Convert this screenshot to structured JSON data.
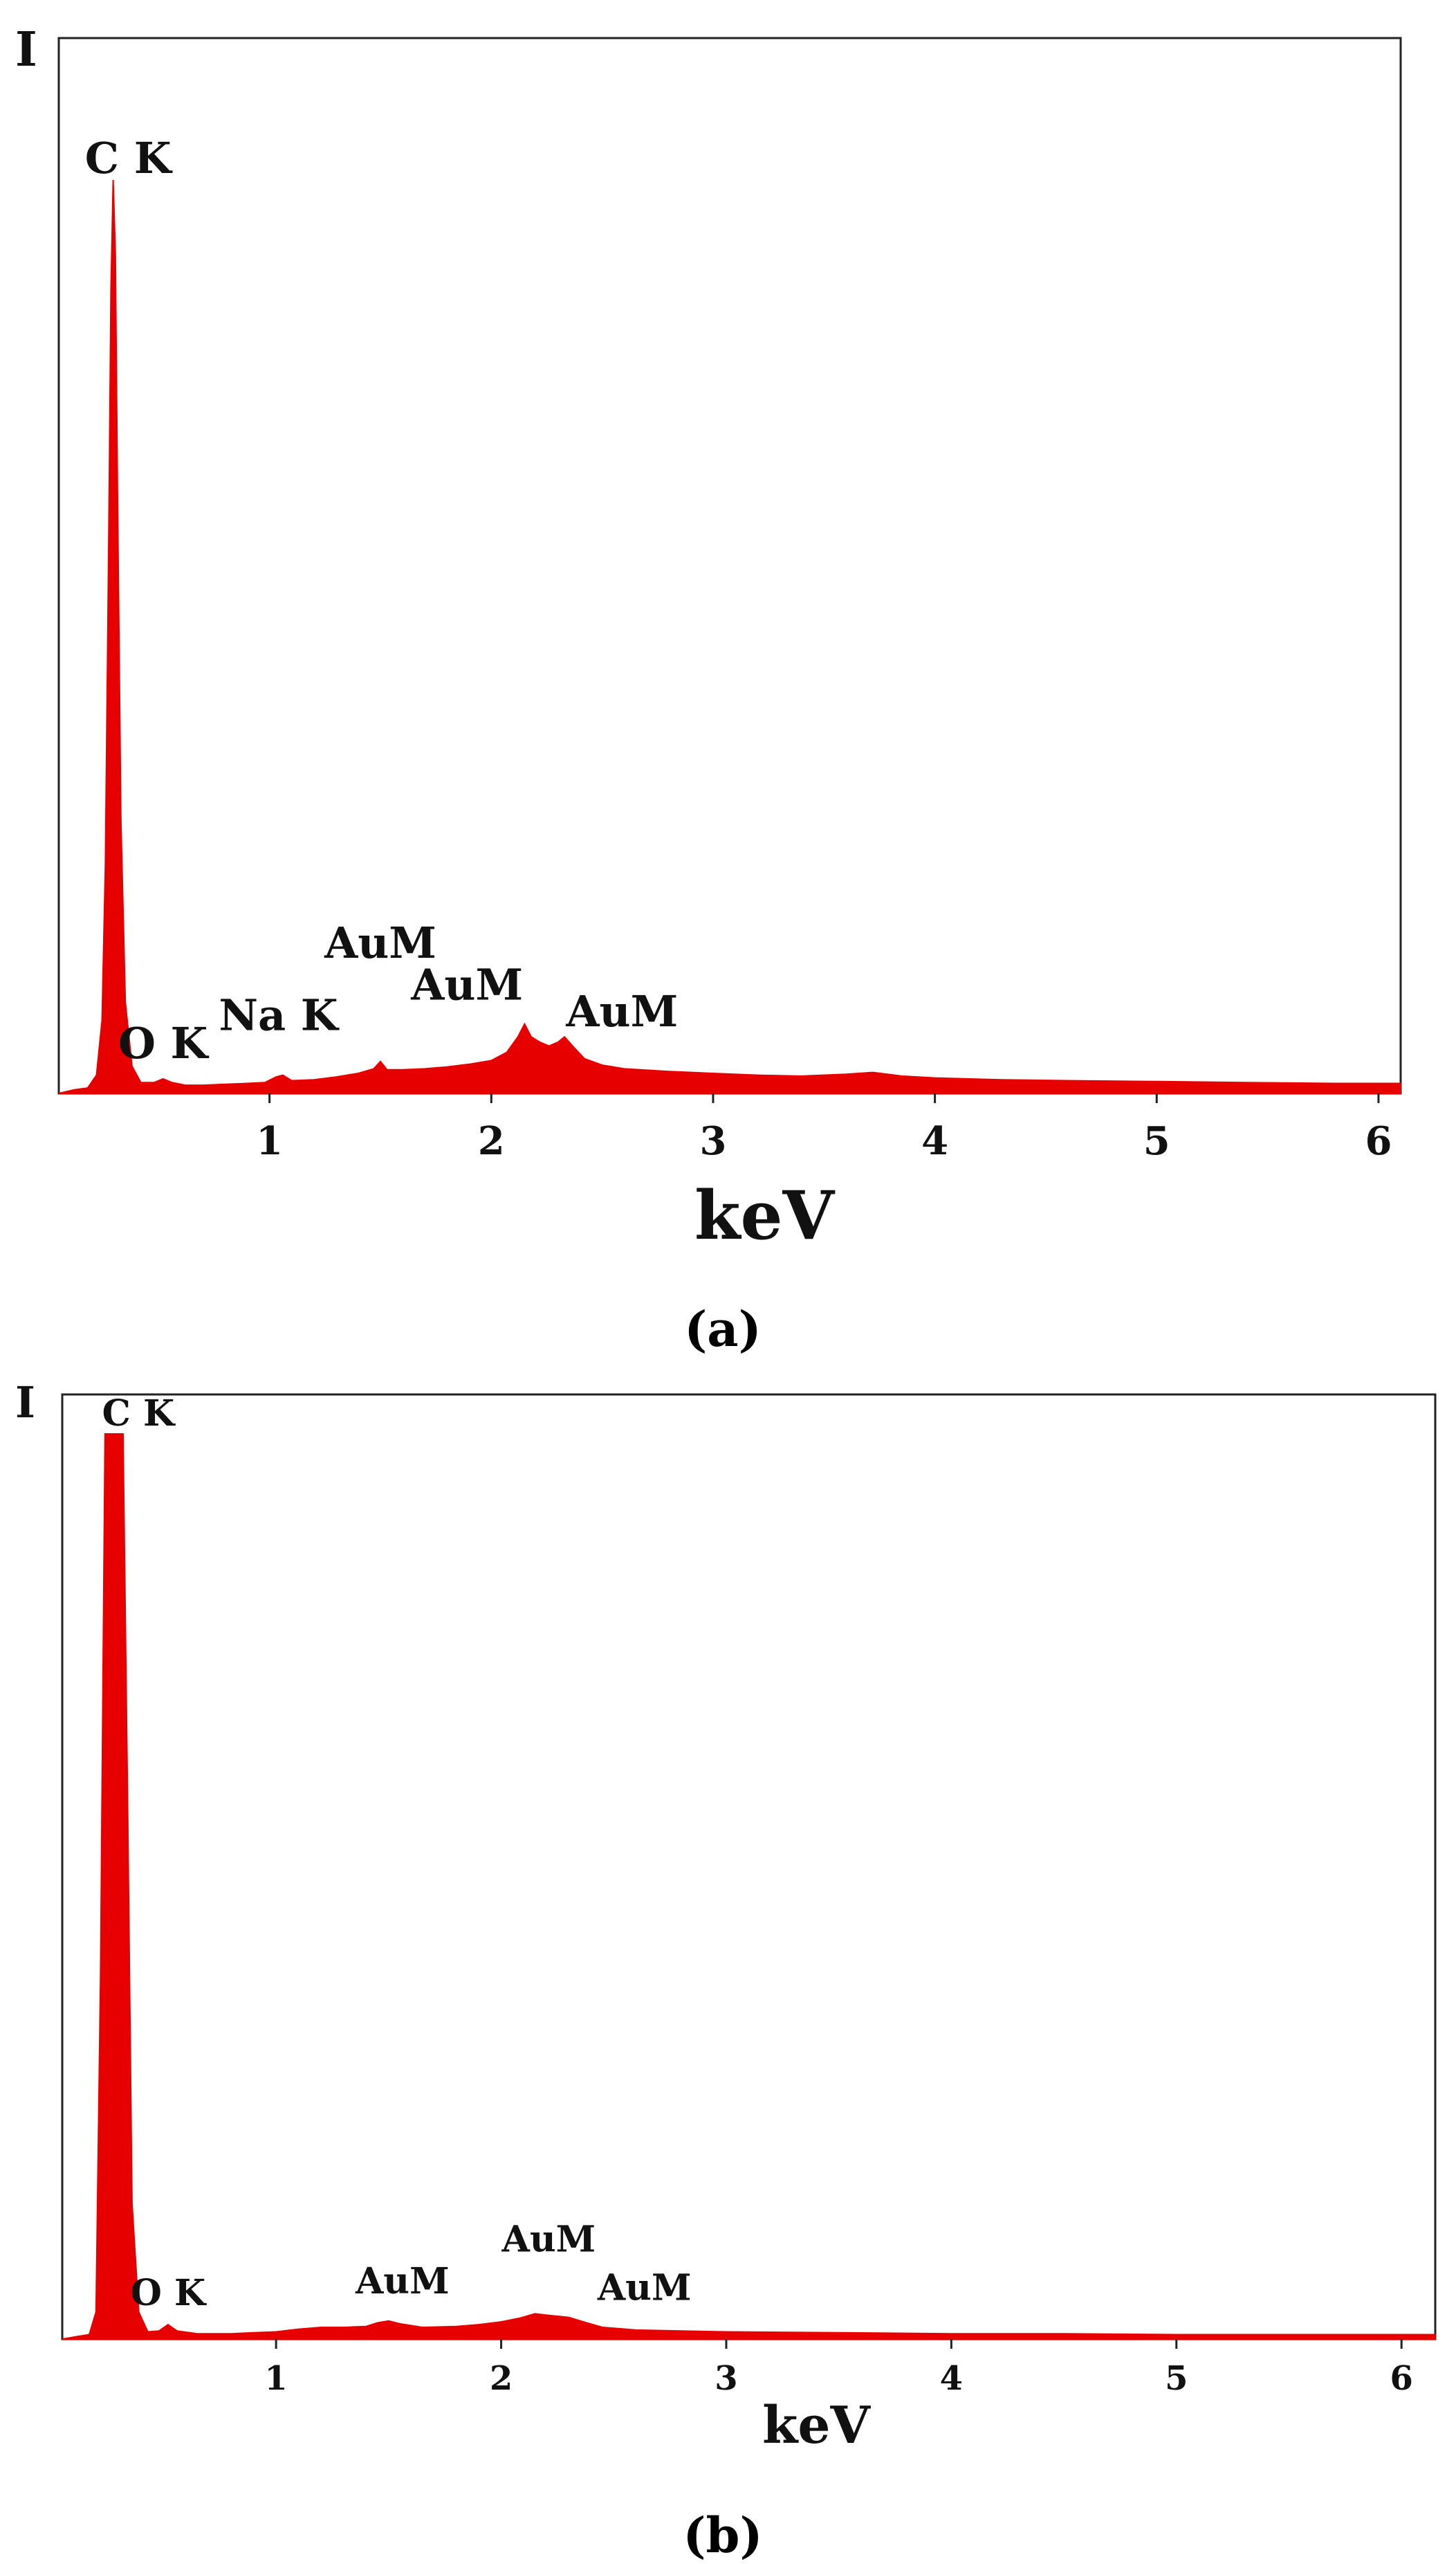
{
  "colors": {
    "spectrum": "#e60000",
    "axis": "#222222"
  },
  "chart_data": [
    {
      "type": "area",
      "panel_label": "(a)",
      "ylabel": "I",
      "xlabel": "keV",
      "xlim": [
        0.05,
        6.1
      ],
      "ylim": [
        0,
        100
      ],
      "xticks": [
        1,
        2,
        3,
        4,
        5,
        6
      ],
      "grid": false,
      "series": [
        {
          "points": [
            [
              0.05,
              0
            ],
            [
              0.12,
              0.4
            ],
            [
              0.18,
              0.6
            ],
            [
              0.22,
              2
            ],
            [
              0.245,
              8
            ],
            [
              0.26,
              25
            ],
            [
              0.275,
              60
            ],
            [
              0.285,
              88
            ],
            [
              0.295,
              100
            ],
            [
              0.305,
              92
            ],
            [
              0.315,
              65
            ],
            [
              0.33,
              30
            ],
            [
              0.35,
              10
            ],
            [
              0.38,
              3
            ],
            [
              0.42,
              1.2
            ],
            [
              0.48,
              1.2
            ],
            [
              0.52,
              1.6
            ],
            [
              0.56,
              1.2
            ],
            [
              0.62,
              0.9
            ],
            [
              0.7,
              0.9
            ],
            [
              0.8,
              1
            ],
            [
              0.9,
              1.1
            ],
            [
              0.98,
              1.2
            ],
            [
              1.03,
              1.8
            ],
            [
              1.06,
              2
            ],
            [
              1.1,
              1.4
            ],
            [
              1.2,
              1.5
            ],
            [
              1.3,
              1.8
            ],
            [
              1.4,
              2.2
            ],
            [
              1.47,
              2.7
            ],
            [
              1.5,
              3.5
            ],
            [
              1.53,
              2.6
            ],
            [
              1.6,
              2.6
            ],
            [
              1.7,
              2.7
            ],
            [
              1.8,
              2.9
            ],
            [
              1.9,
              3.2
            ],
            [
              2.0,
              3.6
            ],
            [
              2.07,
              4.5
            ],
            [
              2.12,
              6.2
            ],
            [
              2.15,
              7.6
            ],
            [
              2.18,
              6.2
            ],
            [
              2.22,
              5.6
            ],
            [
              2.26,
              5.2
            ],
            [
              2.3,
              5.6
            ],
            [
              2.33,
              6.2
            ],
            [
              2.37,
              5.1
            ],
            [
              2.42,
              3.8
            ],
            [
              2.5,
              3.1
            ],
            [
              2.6,
              2.7
            ],
            [
              2.8,
              2.4
            ],
            [
              3.0,
              2.2
            ],
            [
              3.2,
              2
            ],
            [
              3.4,
              1.9
            ],
            [
              3.6,
              2.1
            ],
            [
              3.72,
              2.3
            ],
            [
              3.85,
              1.9
            ],
            [
              4.0,
              1.7
            ],
            [
              4.3,
              1.5
            ],
            [
              4.6,
              1.4
            ],
            [
              5.0,
              1.3
            ],
            [
              5.4,
              1.2
            ],
            [
              5.8,
              1.1
            ],
            [
              6.1,
              1.1
            ]
          ]
        }
      ],
      "annotations": [
        {
          "text": "C K",
          "x": 0.3,
          "y": 100
        },
        {
          "text": "O K",
          "x": 0.52,
          "y": 1.6
        },
        {
          "text": "Na K",
          "x": 1.04,
          "y": 2
        },
        {
          "text": "AuM",
          "x": 1.5,
          "y": 3.5
        },
        {
          "text": "AuM",
          "x": 2.14,
          "y": 7.6
        },
        {
          "text": "AuM",
          "x": 2.34,
          "y": 6.2
        }
      ]
    },
    {
      "type": "area",
      "panel_label": "(b)",
      "ylabel": "I",
      "xlabel": "keV",
      "xlim": [
        0.05,
        6.15
      ],
      "ylim": [
        0,
        100
      ],
      "xticks": [
        1,
        2,
        3,
        4,
        5,
        6
      ],
      "grid": false,
      "series": [
        {
          "points": [
            [
              0.05,
              0
            ],
            [
              0.12,
              0.3
            ],
            [
              0.17,
              0.5
            ],
            [
              0.2,
              3
            ],
            [
              0.22,
              40
            ],
            [
              0.24,
              100
            ],
            [
              0.3,
              100
            ],
            [
              0.32,
              100
            ],
            [
              0.34,
              60
            ],
            [
              0.36,
              15
            ],
            [
              0.39,
              3
            ],
            [
              0.43,
              0.8
            ],
            [
              0.48,
              0.9
            ],
            [
              0.52,
              1.6
            ],
            [
              0.56,
              0.9
            ],
            [
              0.65,
              0.6
            ],
            [
              0.8,
              0.6
            ],
            [
              0.9,
              0.7
            ],
            [
              1.0,
              0.8
            ],
            [
              1.1,
              1.1
            ],
            [
              1.2,
              1.3
            ],
            [
              1.3,
              1.3
            ],
            [
              1.4,
              1.4
            ],
            [
              1.45,
              1.8
            ],
            [
              1.5,
              2
            ],
            [
              1.55,
              1.7
            ],
            [
              1.65,
              1.3
            ],
            [
              1.8,
              1.4
            ],
            [
              1.9,
              1.6
            ],
            [
              2.0,
              1.9
            ],
            [
              2.08,
              2.3
            ],
            [
              2.15,
              2.8
            ],
            [
              2.22,
              2.6
            ],
            [
              2.3,
              2.4
            ],
            [
              2.38,
              1.8
            ],
            [
              2.45,
              1.3
            ],
            [
              2.6,
              1
            ],
            [
              2.8,
              0.9
            ],
            [
              3.0,
              0.8
            ],
            [
              3.5,
              0.7
            ],
            [
              4.0,
              0.6
            ],
            [
              4.5,
              0.6
            ],
            [
              5.0,
              0.5
            ],
            [
              5.5,
              0.5
            ],
            [
              6.15,
              0.5
            ]
          ]
        }
      ],
      "annotations": [
        {
          "text": "C K",
          "x": 0.28,
          "y": 100
        },
        {
          "text": "O K",
          "x": 0.52,
          "y": 1.6
        },
        {
          "text": "AuM",
          "x": 1.5,
          "y": 2
        },
        {
          "text": "AuM",
          "x": 2.15,
          "y": 2.8
        },
        {
          "text": "AuM",
          "x": 2.36,
          "y": 2.4
        }
      ]
    }
  ]
}
